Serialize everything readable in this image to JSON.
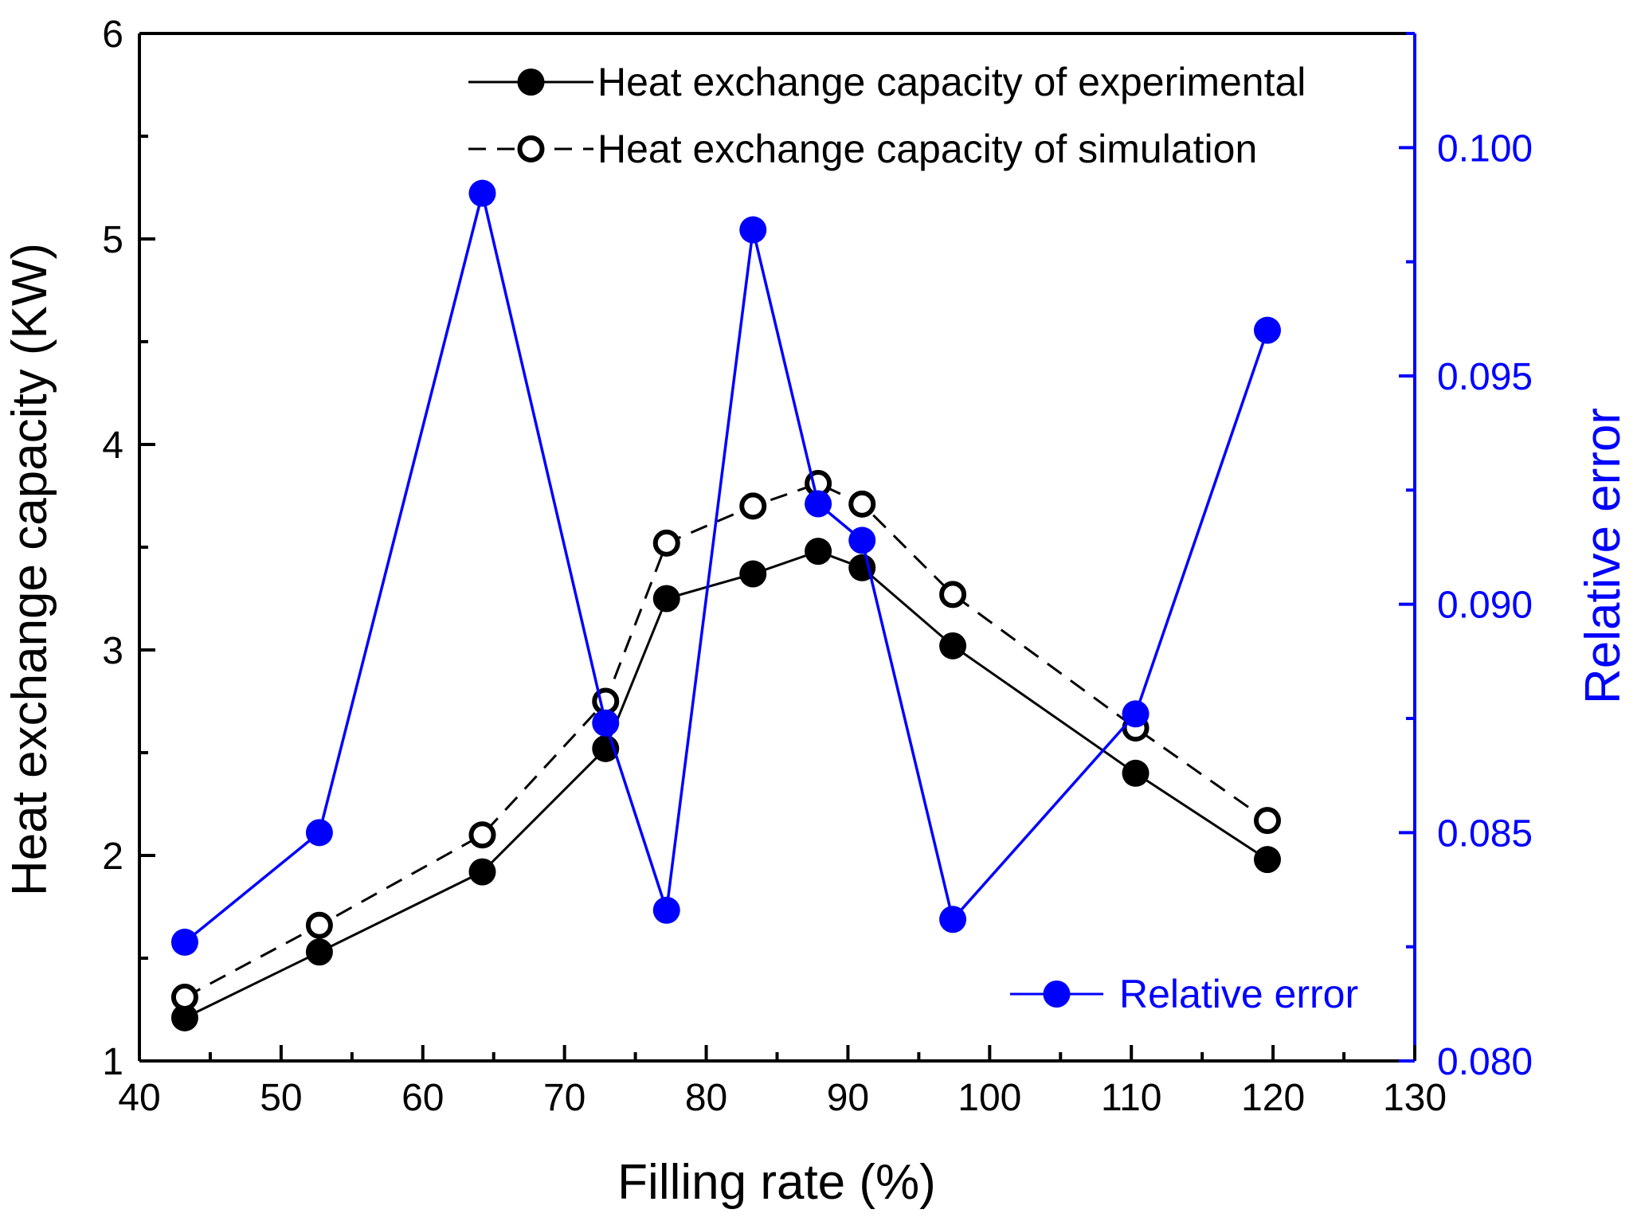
{
  "chart_data": {
    "type": "line",
    "xlabel": "Filling rate (%)",
    "ylabel_left": "Heat exchange capacity (KW)",
    "ylabel_right": "Relative error",
    "xlim": [
      40,
      130
    ],
    "ylim_left": [
      1,
      6
    ],
    "ylim_right": [
      0.08,
      0.1025
    ],
    "x_ticks": [
      "40",
      "50",
      "60",
      "70",
      "80",
      "90",
      "100",
      "110",
      "120",
      "130"
    ],
    "y_left_ticks": [
      "1",
      "2",
      "3",
      "4",
      "5",
      "6"
    ],
    "y_right_ticks": [
      "0.080",
      "0.085",
      "0.090",
      "0.095",
      "0.100"
    ],
    "x": [
      43.2,
      52.7,
      64.2,
      72.9,
      77.2,
      83.3,
      87.9,
      91.0,
      97.4,
      110.3,
      119.6
    ],
    "series": [
      {
        "name": "Heat exchange capacity of experimental",
        "axis": "left",
        "style": "solid-filled",
        "color": "#000000",
        "values": [
          1.21,
          1.53,
          1.92,
          2.52,
          3.25,
          3.37,
          3.48,
          3.4,
          3.02,
          2.4,
          1.98
        ]
      },
      {
        "name": "Heat exchange capacity of simulation",
        "axis": "left",
        "style": "dashed-open",
        "color": "#000000",
        "values": [
          1.31,
          1.66,
          2.1,
          2.75,
          3.52,
          3.7,
          3.81,
          3.71,
          3.27,
          2.62,
          2.17
        ]
      },
      {
        "name": "Relative error",
        "axis": "right",
        "style": "solid-filled",
        "color": "#0000FF",
        "values": [
          0.0826,
          0.085,
          0.099,
          0.0874,
          0.0833,
          0.0982,
          0.0922,
          0.0914,
          0.0831,
          0.0876,
          0.096
        ]
      }
    ]
  }
}
